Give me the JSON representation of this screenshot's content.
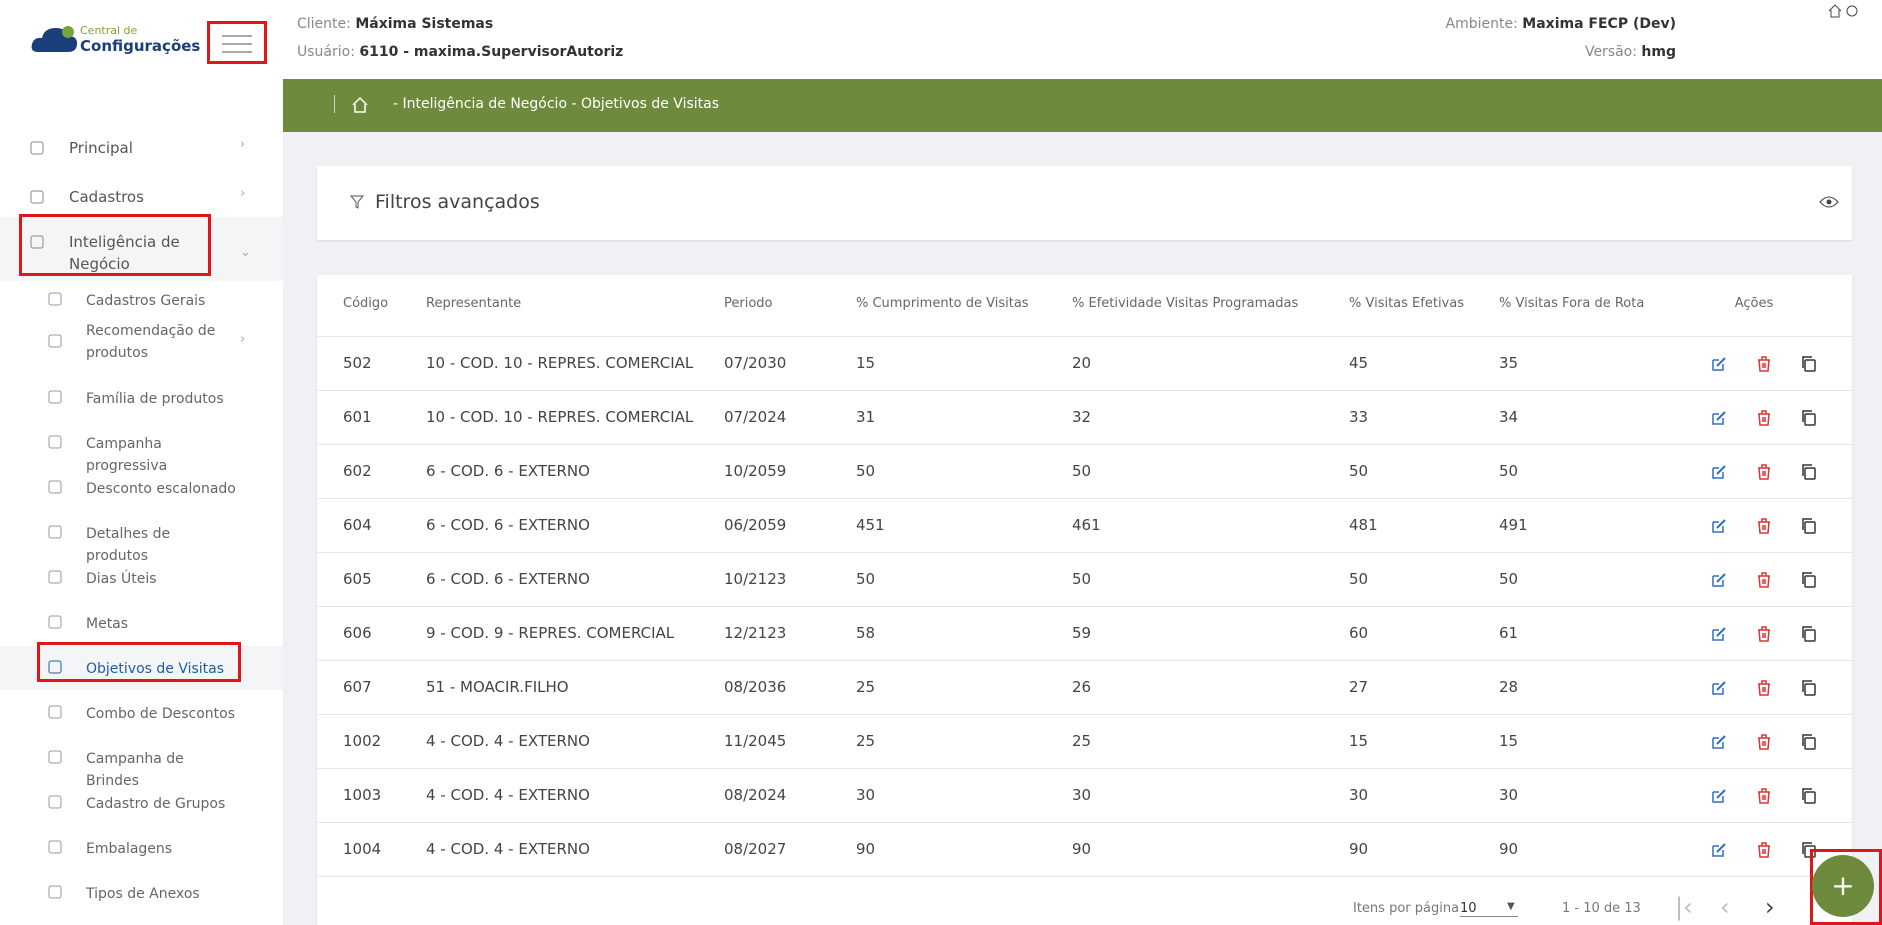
{
  "header": {
    "logo_top": "Central de",
    "logo_bottom": "Configurações",
    "client_label": "Cliente:",
    "client": "Máxima Sistemas",
    "user_label": "Usuário:",
    "user": "6110 - maxima.SupervisorAutoriz",
    "env_label": "Ambiente:",
    "env": "Maxima FECP (Dev)",
    "version_label": "Versão:",
    "version": "hmg"
  },
  "breadcrumb": "- Inteligência de Negócio - Objetivos de Visitas",
  "sidebar": {
    "items": [
      "Principal",
      "Cadastros",
      "Inteligência de Negócio"
    ],
    "subitems": [
      "Cadastros Gerais",
      "Recomendação de produtos",
      "Família de produtos",
      "Campanha progressiva",
      "Desconto escalonado",
      "Detalhes de produtos",
      "Dias Úteis",
      "Metas",
      "Objetivos de Visitas",
      "Combo de Descontos",
      "Campanha de Brindes",
      "Cadastro de Grupos",
      "Embalagens",
      "Tipos de Anexos"
    ]
  },
  "filters": {
    "title": "Filtros avançados"
  },
  "table": {
    "columns": [
      "Código",
      "Representante",
      "Periodo",
      "% Cumprimento de Visitas",
      "% Efetividade Visitas Programadas",
      "% Visitas Efetivas",
      "% Visitas Fora de Rota",
      "Ações"
    ],
    "rows": [
      [
        "502",
        "10 - COD. 10 - REPRES. COMERCIAL",
        "07/2030",
        "15",
        "20",
        "45",
        "35"
      ],
      [
        "601",
        "10 - COD. 10 - REPRES. COMERCIAL",
        "07/2024",
        "31",
        "32",
        "33",
        "34"
      ],
      [
        "602",
        "6 - COD. 6 - EXTERNO",
        "10/2059",
        "50",
        "50",
        "50",
        "50"
      ],
      [
        "604",
        "6 - COD. 6 - EXTERNO",
        "06/2059",
        "451",
        "461",
        "481",
        "491"
      ],
      [
        "605",
        "6 - COD. 6 - EXTERNO",
        "10/2123",
        "50",
        "50",
        "50",
        "50"
      ],
      [
        "606",
        "9 - COD. 9 - REPRES. COMERCIAL",
        "12/2123",
        "58",
        "59",
        "60",
        "61"
      ],
      [
        "607",
        "51 - MOACIR.FILHO",
        "08/2036",
        "25",
        "26",
        "27",
        "28"
      ],
      [
        "1002",
        "4 - COD. 4 - EXTERNO",
        "11/2045",
        "25",
        "25",
        "15",
        "15"
      ],
      [
        "1003",
        "4 - COD. 4 - EXTERNO",
        "08/2024",
        "30",
        "30",
        "30",
        "30"
      ],
      [
        "1004",
        "4 - COD. 4 - EXTERNO",
        "08/2027",
        "90",
        "90",
        "90",
        "90"
      ]
    ]
  },
  "pagination": {
    "label": "Itens por página",
    "page_size": "10",
    "range": "1 - 10 de 13"
  },
  "fab": "+"
}
